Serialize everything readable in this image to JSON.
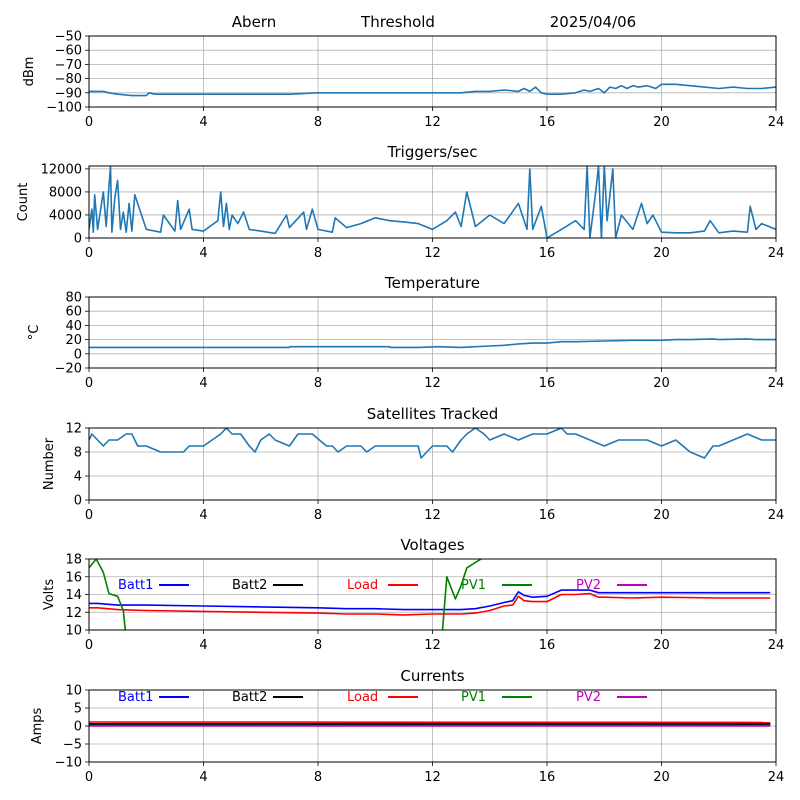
{
  "header": {
    "station": "Abern",
    "mode": "Threshold",
    "date": "2025/04/06"
  },
  "chart_data": [
    {
      "id": "signal",
      "type": "line",
      "title": "",
      "xlabel": "",
      "ylabel": "dBm",
      "xlim": [
        0,
        24
      ],
      "ylim": [
        -100,
        -50
      ],
      "xticks": [
        0,
        4,
        8,
        12,
        16,
        20,
        24
      ],
      "yticks": [
        -50,
        -60,
        -70,
        -80,
        -90,
        -100
      ],
      "ytick_labels": [
        "−50",
        "−60",
        "−70",
        "−80",
        "−90",
        "−100"
      ],
      "grid": true,
      "series": [
        {
          "name": "dBm",
          "color": "#1f77b4",
          "x": [
            0,
            0.5,
            0.7,
            1.0,
            1.5,
            2.0,
            2.1,
            2.3,
            3,
            4,
            5,
            6,
            7,
            8,
            9,
            10,
            11,
            12,
            12.5,
            13,
            13.5,
            14,
            14.5,
            15,
            15.2,
            15.4,
            15.6,
            15.8,
            16,
            16.5,
            17,
            17.3,
            17.5,
            17.8,
            18,
            18.2,
            18.4,
            18.6,
            18.8,
            19,
            19.2,
            19.5,
            19.8,
            20,
            20.5,
            21,
            21.5,
            22,
            22.5,
            23,
            23.5,
            24
          ],
          "y": [
            -89,
            -89,
            -90,
            -91,
            -92,
            -92,
            -90,
            -91,
            -91,
            -91,
            -91,
            -91,
            -91,
            -90,
            -90,
            -90,
            -90,
            -90,
            -90,
            -90,
            -89,
            -89,
            -88,
            -89,
            -87,
            -89,
            -86,
            -90,
            -91,
            -91,
            -90,
            -88,
            -89,
            -87,
            -90,
            -86,
            -87,
            -85,
            -87,
            -85,
            -86,
            -85,
            -87,
            -84,
            -84,
            -85,
            -86,
            -87,
            -86,
            -87,
            -87,
            -86
          ]
        }
      ]
    },
    {
      "id": "triggers",
      "type": "line",
      "title": "Triggers/sec",
      "xlabel": "",
      "ylabel": "Count",
      "xlim": [
        0,
        24
      ],
      "ylim": [
        0,
        12500
      ],
      "xticks": [
        0,
        4,
        8,
        12,
        16,
        20,
        24
      ],
      "yticks": [
        0,
        4000,
        8000,
        12000
      ],
      "ytick_labels": [
        "0",
        "4000",
        "8000",
        "12000"
      ],
      "grid": true,
      "series": [
        {
          "name": "Triggers",
          "color": "#1f77b4",
          "x": [
            0,
            0.1,
            0.15,
            0.2,
            0.3,
            0.5,
            0.6,
            0.7,
            0.75,
            0.8,
            0.9,
            1.0,
            1.1,
            1.2,
            1.3,
            1.4,
            1.5,
            1.6,
            2.0,
            2.5,
            2.6,
            3.0,
            3.1,
            3.2,
            3.5,
            3.6,
            4.0,
            4.5,
            4.6,
            4.7,
            4.8,
            4.9,
            5.0,
            5.2,
            5.4,
            5.6,
            6.0,
            6.5,
            6.9,
            7.0,
            7.5,
            7.6,
            7.8,
            8.0,
            8.5,
            8.6,
            9.0,
            9.5,
            10.0,
            10.5,
            11.0,
            11.5,
            12.0,
            12.5,
            12.8,
            13.0,
            13.2,
            13.5,
            14.0,
            14.5,
            15.0,
            15.3,
            15.4,
            15.5,
            15.8,
            16.0,
            16.5,
            17.0,
            17.3,
            17.4,
            17.5,
            17.7,
            17.8,
            17.9,
            18.0,
            18.1,
            18.3,
            18.4,
            18.6,
            19.0,
            19.3,
            19.5,
            19.7,
            20.0,
            20.5,
            21.0,
            21.5,
            21.7,
            22.0,
            22.5,
            23.0,
            23.1,
            23.3,
            23.5,
            24.0
          ],
          "y": [
            1500,
            5000,
            1000,
            7500,
            1500,
            8000,
            2000,
            9000,
            12500,
            1000,
            7000,
            10000,
            1500,
            4500,
            1000,
            6000,
            1200,
            7500,
            1500,
            1000,
            4000,
            1200,
            6500,
            1500,
            5000,
            1500,
            1200,
            3000,
            8000,
            2000,
            6000,
            1500,
            4000,
            2500,
            4500,
            1500,
            1200,
            800,
            4000,
            1800,
            4500,
            1500,
            5000,
            1500,
            1000,
            3500,
            1800,
            2500,
            3500,
            3000,
            2800,
            2500,
            1500,
            3000,
            4500,
            2000,
            8000,
            2000,
            4000,
            2500,
            6000,
            1500,
            12000,
            1500,
            5500,
            0,
            1500,
            3000,
            1500,
            12500,
            0,
            8000,
            12500,
            0,
            12500,
            3000,
            12000,
            0,
            4000,
            1500,
            6000,
            2500,
            4000,
            1000,
            900,
            900,
            1200,
            3000,
            900,
            1200,
            1000,
            5500,
            1500,
            2500,
            1500
          ]
        }
      ]
    },
    {
      "id": "temperature",
      "type": "line",
      "title": "Temperature",
      "xlabel": "",
      "ylabel": "°C",
      "xlim": [
        0,
        24
      ],
      "ylim": [
        -20,
        80
      ],
      "xticks": [
        0,
        4,
        8,
        12,
        16,
        20,
        24
      ],
      "yticks": [
        -20,
        0,
        20,
        40,
        60,
        80
      ],
      "ytick_labels": [
        "−20",
        "0",
        "20",
        "40",
        "60",
        "80"
      ],
      "grid": true,
      "series": [
        {
          "name": "Temperature",
          "color": "#1f77b4",
          "x": [
            0,
            7,
            7.01,
            10.5,
            10.51,
            11.5,
            12.2,
            13,
            13.5,
            14,
            14.5,
            15,
            15.5,
            16,
            16.5,
            17,
            18,
            19,
            20,
            20.5,
            21,
            21.8,
            22,
            23,
            23.3,
            24
          ],
          "y": [
            9,
            9,
            10,
            10,
            9,
            9,
            10,
            9,
            10,
            11,
            12,
            14,
            15,
            15,
            17,
            17,
            18,
            19,
            19,
            20,
            20,
            21,
            20,
            21,
            20,
            20
          ]
        }
      ]
    },
    {
      "id": "satellites",
      "type": "line",
      "title": "Satellites Tracked",
      "xlabel": "",
      "ylabel": "Number",
      "xlim": [
        0,
        24
      ],
      "ylim": [
        0,
        12
      ],
      "xticks": [
        0,
        4,
        8,
        12,
        16,
        20,
        24
      ],
      "yticks": [
        0,
        4,
        8,
        12
      ],
      "ytick_labels": [
        "0",
        "4",
        "8",
        "12"
      ],
      "grid": true,
      "series": [
        {
          "name": "Satellites",
          "color": "#1f77b4",
          "x": [
            0,
            0.1,
            0.3,
            0.5,
            0.7,
            1.0,
            1.3,
            1.5,
            1.7,
            2.0,
            2.5,
            3.3,
            3.5,
            4.0,
            4.3,
            4.6,
            4.8,
            5.0,
            5.3,
            5.6,
            5.8,
            6.0,
            6.3,
            6.5,
            7.0,
            7.3,
            7.8,
            8.3,
            8.5,
            8.7,
            9.0,
            9.5,
            9.7,
            10.0,
            11.0,
            11.5,
            11.6,
            12.0,
            12.5,
            12.7,
            13.0,
            13.2,
            13.5,
            13.8,
            14.0,
            14.5,
            15.0,
            15.5,
            16.0,
            16.5,
            16.7,
            17.0,
            17.5,
            18.0,
            18.5,
            19.0,
            19.5,
            20.0,
            20.5,
            21.0,
            21.5,
            21.8,
            22.0,
            22.5,
            23.0,
            23.5,
            24.0
          ],
          "y": [
            10,
            11,
            10,
            9,
            10,
            10,
            11,
            11,
            9,
            9,
            8,
            8,
            9,
            9,
            10,
            11,
            12,
            11,
            11,
            9,
            8,
            10,
            11,
            10,
            9,
            11,
            11,
            9,
            9,
            8,
            9,
            9,
            8,
            9,
            9,
            9,
            7,
            9,
            9,
            8,
            10,
            11,
            12,
            11,
            10,
            11,
            10,
            11,
            11,
            12,
            11,
            11,
            10,
            9,
            10,
            10,
            10,
            9,
            10,
            8,
            7,
            9,
            9,
            10,
            11,
            10,
            10
          ]
        }
      ]
    },
    {
      "id": "voltages",
      "type": "line",
      "title": "Voltages",
      "xlabel": "",
      "ylabel": "Volts",
      "xlim": [
        0,
        24
      ],
      "ylim": [
        10,
        18
      ],
      "xticks": [
        0,
        4,
        8,
        12,
        16,
        20,
        24
      ],
      "yticks": [
        10,
        12,
        14,
        16,
        18
      ],
      "ytick_labels": [
        "10",
        "12",
        "14",
        "16",
        "18"
      ],
      "grid": true,
      "legend": {
        "placement": "top",
        "entries": [
          "Batt1",
          "Batt2",
          "Load",
          "PV1",
          "PV2"
        ]
      },
      "series": [
        {
          "name": "Batt1",
          "color": "#0000ff",
          "x": [
            0,
            0.3,
            1,
            2,
            4,
            6,
            8,
            9,
            10,
            11,
            12,
            13,
            13.5,
            14,
            14.5,
            14.8,
            15.0,
            15.2,
            15.5,
            16,
            16.5,
            17,
            17.5,
            17.8,
            18,
            19,
            20,
            22,
            23.8
          ],
          "y": [
            13.0,
            13.0,
            12.8,
            12.8,
            12.7,
            12.6,
            12.5,
            12.4,
            12.4,
            12.3,
            12.3,
            12.3,
            12.4,
            12.7,
            13.1,
            13.3,
            14.3,
            13.9,
            13.7,
            13.8,
            14.5,
            14.5,
            14.5,
            14.2,
            14.2,
            14.2,
            14.2,
            14.2,
            14.2
          ]
        },
        {
          "name": "Batt2",
          "color": "#000000",
          "x": [],
          "y": []
        },
        {
          "name": "Load",
          "color": "#ff0000",
          "x": [
            0,
            0.3,
            1,
            2,
            4,
            6,
            8,
            9,
            10,
            11,
            12,
            13,
            13.5,
            14,
            14.5,
            14.8,
            15.0,
            15.2,
            15.5,
            16,
            16.5,
            17,
            17.5,
            17.8,
            18,
            19,
            20,
            22,
            23.8
          ],
          "y": [
            12.5,
            12.5,
            12.3,
            12.2,
            12.1,
            12.0,
            11.9,
            11.8,
            11.8,
            11.7,
            11.8,
            11.8,
            11.9,
            12.2,
            12.7,
            12.8,
            13.8,
            13.3,
            13.2,
            13.2,
            14.0,
            14.0,
            14.1,
            13.7,
            13.7,
            13.6,
            13.7,
            13.6,
            13.6
          ]
        },
        {
          "name": "PV1",
          "color": "#008000",
          "x": [
            0,
            0.25,
            0.5,
            0.7,
            1.0,
            1.2,
            1.3,
            1.35,
            12.3,
            12.5,
            12.8,
            13.0,
            13.2,
            13.5,
            13.8
          ],
          "y": [
            17.0,
            18.0,
            16.5,
            14.1,
            13.8,
            12.2,
            9.0,
            8.0,
            8.0,
            16.0,
            13.5,
            15.0,
            17.0,
            17.6,
            18.2
          ]
        },
        {
          "name": "PV2",
          "color": "#bf00bf",
          "x": [],
          "y": []
        }
      ]
    },
    {
      "id": "currents",
      "type": "line",
      "title": "Currents",
      "xlabel": "",
      "ylabel": "Amps",
      "xlim": [
        0,
        24
      ],
      "ylim": [
        -10,
        10
      ],
      "xticks": [
        0,
        4,
        8,
        12,
        16,
        20,
        24
      ],
      "yticks": [
        -10,
        -5,
        0,
        5,
        10
      ],
      "ytick_labels": [
        "−10",
        "−5",
        "0",
        "5",
        "10"
      ],
      "grid": true,
      "legend": {
        "placement": "top",
        "entries": [
          "Batt1",
          "Batt2",
          "Load",
          "PV1",
          "PV2"
        ]
      },
      "series": [
        {
          "name": "Batt1",
          "color": "#0000ff",
          "x": [
            0,
            23.8
          ],
          "y": [
            0.2,
            0.2
          ]
        },
        {
          "name": "Batt2",
          "color": "#000000",
          "x": [
            0,
            23.8
          ],
          "y": [
            0.6,
            0.6
          ]
        },
        {
          "name": "Load",
          "color": "#ff0000",
          "x": [
            0,
            23.8
          ],
          "y": [
            1.1,
            1.0
          ]
        },
        {
          "name": "PV1",
          "color": "#008000",
          "x": [
            0,
            23.8
          ],
          "y": [
            0.1,
            0.1
          ]
        },
        {
          "name": "PV2",
          "color": "#bf00bf",
          "x": [
            0,
            23.8
          ],
          "y": [
            0.0,
            0.0
          ]
        }
      ]
    }
  ]
}
